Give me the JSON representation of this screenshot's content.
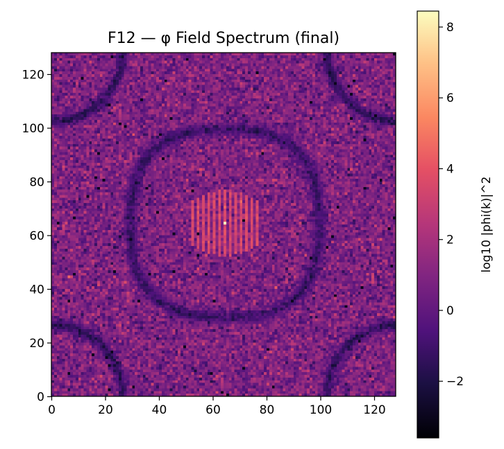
{
  "chart_data": {
    "type": "heatmap",
    "title": "F12 — φ Field Spectrum (final)",
    "xlabel": "",
    "ylabel": "",
    "grid_size": 128,
    "xlim": [
      0,
      128
    ],
    "ylim": [
      0,
      128
    ],
    "x_ticks": [
      0,
      20,
      40,
      60,
      80,
      100,
      120
    ],
    "y_ticks": [
      0,
      20,
      40,
      60,
      80,
      100,
      120
    ],
    "colormap": "magma",
    "colorbar": {
      "label": "log10 |phi(k)|^2",
      "range": [
        -3.6,
        8.45
      ],
      "ticks": [
        -2,
        0,
        2,
        4,
        6,
        8
      ],
      "tick_labels": [
        "−2",
        "0",
        "2",
        "4",
        "6",
        "8"
      ]
    },
    "features": {
      "background_level": 0.8,
      "background_noise": 0.9,
      "central_peak": {
        "x": 64,
        "y": 64,
        "value": 8.4
      },
      "central_stripes": {
        "x_range": [
          52,
          76
        ],
        "y_range": [
          52,
          76
        ],
        "level": 3.5,
        "stripe_period": 2
      },
      "ring": {
        "center": [
          64,
          64
        ],
        "radius": 35,
        "level": -1.2,
        "shape": "rounded-square"
      },
      "corner_arcs": {
        "centers": [
          [
            0,
            0
          ],
          [
            128,
            0
          ],
          [
            0,
            128
          ],
          [
            128,
            128
          ]
        ],
        "radius": 26,
        "level": -1.5
      }
    }
  }
}
